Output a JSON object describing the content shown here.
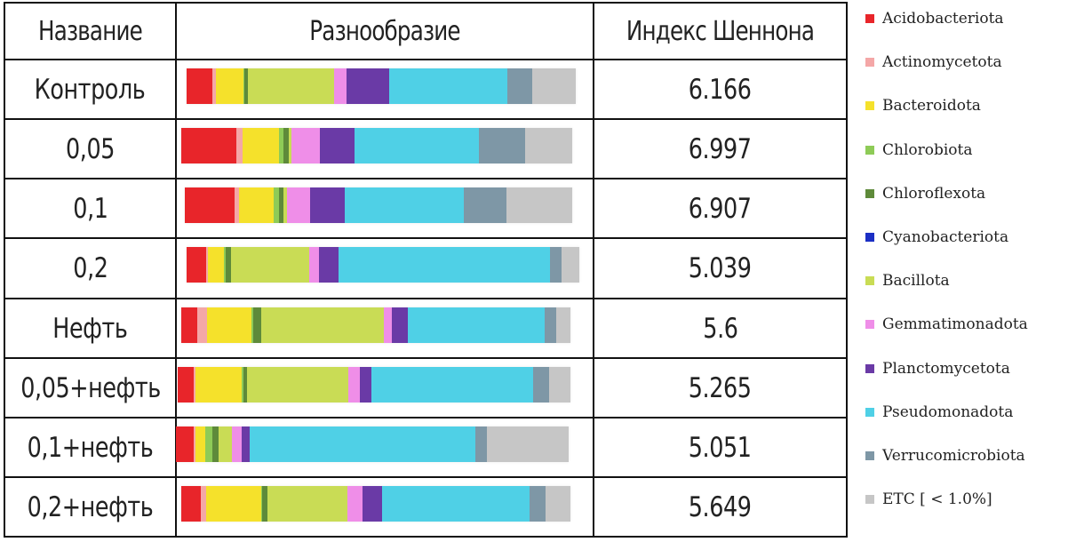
{
  "table": {
    "headers": {
      "name": "Название",
      "diversity": "Разнообразие",
      "index": "Индекс Шеннона"
    }
  },
  "legend": [
    {
      "label": "Acidobacteriota",
      "color": "#e8252a"
    },
    {
      "label": "Actinomycetota",
      "color": "#f4a7a7"
    },
    {
      "label": "Bacteroidota",
      "color": "#f5e12b"
    },
    {
      "label": "Chlorobiota",
      "color": "#8ecb57"
    },
    {
      "label": "Chloroflexota",
      "color": "#5e8a3a"
    },
    {
      "label": "Cyanobacteriota",
      "color": "#1b2fc4"
    },
    {
      "label": "Bacillota",
      "color": "#c9dc55"
    },
    {
      "label": "Gemmatimonadota",
      "color": "#ef8ee8"
    },
    {
      "label": "Planctomycetota",
      "color": "#6a3aa6"
    },
    {
      "label": "Pseudomonadota",
      "color": "#4fd0e6"
    },
    {
      "label": "Verrucomicrobiota",
      "color": "#7e97a6"
    },
    {
      "label": "ETC [ < 1.0%]",
      "color": "#c6c6c6"
    }
  ],
  "chart_data": {
    "type": "bar",
    "orientation": "horizontal-stacked-100",
    "categories": [
      "Контроль",
      "0,05",
      "0,1",
      "0,2",
      "Нефть",
      "0,05+нефть",
      "0,1+нефть",
      "0,2+нефть"
    ],
    "shannon_index": [
      "6.166",
      "6.997",
      "6.907",
      "5.039",
      "5.6",
      "5.265",
      "5.051",
      "5.649"
    ],
    "series": [
      {
        "name": "Acidobacteriota",
        "values": [
          6.5,
          13.5,
          13,
          5,
          4,
          4,
          4.5,
          5
        ]
      },
      {
        "name": "Actinomycetota",
        "values": [
          1,
          1.5,
          1,
          0.5,
          2.5,
          0.5,
          0.5,
          1.5
        ]
      },
      {
        "name": "Bacteroidota",
        "values": [
          7,
          9,
          9,
          4,
          11.5,
          12,
          2.5,
          14
        ]
      },
      {
        "name": "Chlorobiota",
        "values": [
          0.2,
          1,
          1.5,
          0.5,
          0.3,
          0.3,
          2,
          0.3
        ]
      },
      {
        "name": "Chloroflexota",
        "values": [
          1,
          1.5,
          1,
          1.5,
          2,
          1,
          1.5,
          1.5
        ]
      },
      {
        "name": "Cyanobacteriota",
        "values": [
          0,
          0,
          0,
          0,
          0,
          0,
          0,
          0
        ]
      },
      {
        "name": "Bacillota",
        "values": [
          22,
          0.5,
          1,
          20,
          31.5,
          26,
          3.5,
          20.5
        ]
      },
      {
        "name": "Gemmatimonadota",
        "values": [
          3,
          7,
          6,
          2.5,
          2,
          3,
          2.5,
          4
        ]
      },
      {
        "name": "Planctomycetota",
        "values": [
          11,
          8.5,
          9,
          5,
          4,
          3,
          2,
          5
        ]
      },
      {
        "name": "Pseudomonadota",
        "values": [
          30,
          30.5,
          31,
          54.5,
          35,
          41.5,
          58.5,
          38
        ]
      },
      {
        "name": "Verrucomicrobiota",
        "values": [
          6.5,
          11.5,
          11,
          3,
          3,
          4,
          3,
          4
        ]
      },
      {
        "name": "ETC [ < 1.0%]",
        "values": [
          11,
          11.5,
          17,
          4.5,
          3.5,
          5.5,
          21,
          6.5
        ]
      }
    ],
    "xlim": [
      0,
      100
    ]
  }
}
